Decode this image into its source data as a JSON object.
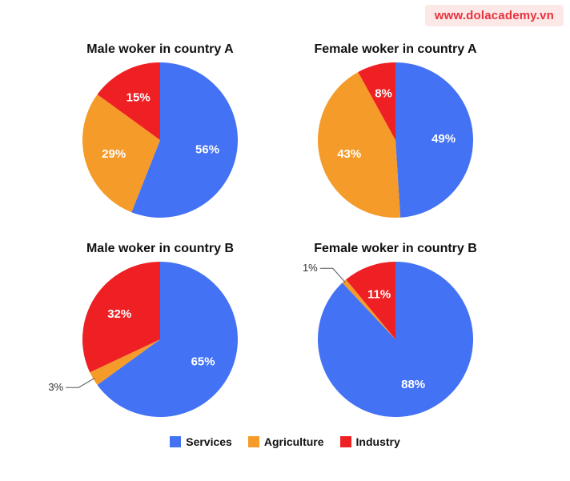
{
  "watermark": "www.dolacademy.vn",
  "colors": {
    "Services": "#4472f4",
    "Agriculture": "#f59b2a",
    "Industry": "#ee2024"
  },
  "chart_data": [
    {
      "type": "pie",
      "title": "Male woker in country A",
      "labels": [
        "Services",
        "Agriculture",
        "Industry"
      ],
      "values": [
        56,
        29,
        15
      ],
      "value_labels": [
        "56%",
        "29%",
        "15%"
      ]
    },
    {
      "type": "pie",
      "title": "Female woker in country A",
      "labels": [
        "Services",
        "Agriculture",
        "Industry"
      ],
      "values": [
        49,
        43,
        8
      ],
      "value_labels": [
        "49%",
        "43%",
        "8%"
      ]
    },
    {
      "type": "pie",
      "title": "Male woker in country B",
      "labels": [
        "Services",
        "Agriculture",
        "Industry"
      ],
      "values": [
        65,
        3,
        32
      ],
      "value_labels": [
        "65%",
        "3%",
        "32%"
      ]
    },
    {
      "type": "pie",
      "title": "Female woker in country B",
      "labels": [
        "Services",
        "Agriculture",
        "Industry"
      ],
      "values": [
        88,
        1,
        11
      ],
      "value_labels": [
        "88%",
        "1%",
        "11%"
      ]
    }
  ],
  "legend": [
    "Services",
    "Agriculture",
    "Industry"
  ]
}
